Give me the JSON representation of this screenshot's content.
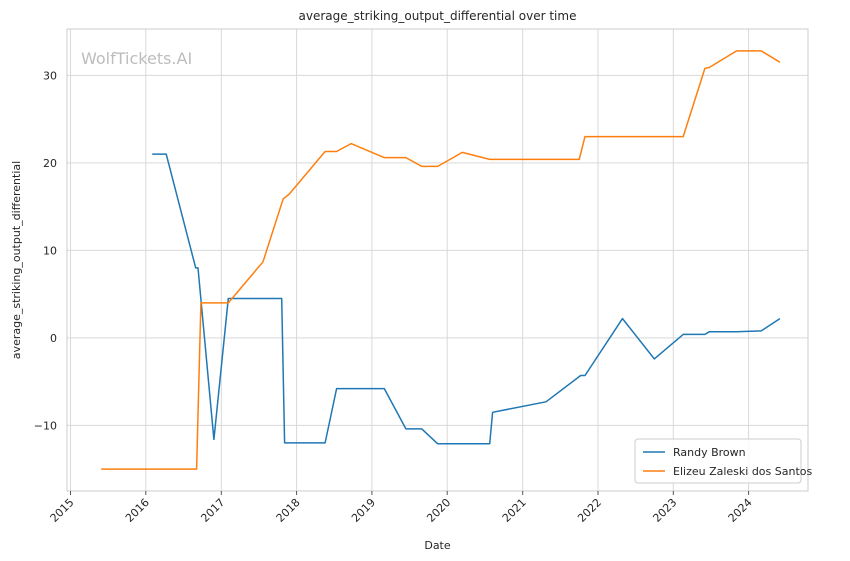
{
  "chart_data": {
    "type": "line",
    "title": "average_striking_output_differential over time",
    "xlabel": "Date",
    "ylabel": "average_striking_output_differential",
    "watermark": "WolfTickets.AI",
    "x_ticks": [
      "2015",
      "2016",
      "2017",
      "2018",
      "2019",
      "2020",
      "2021",
      "2022",
      "2023",
      "2024"
    ],
    "y_ticks": [
      -10,
      0,
      10,
      20,
      30
    ],
    "xlim": [
      "2014-12-15",
      "2024-10-15"
    ],
    "ylim": [
      -17.5,
      35.3
    ],
    "grid": true,
    "legend_position": "lower-right",
    "series": [
      {
        "name": "Randy Brown",
        "color": "#1f77b4",
        "points": [
          [
            "2016-02-01",
            21.0
          ],
          [
            "2016-04-09",
            21.0
          ],
          [
            "2016-08-30",
            8.0
          ],
          [
            "2016-09-10",
            8.0
          ],
          [
            "2016-11-26",
            -11.6
          ],
          [
            "2017-02-04",
            4.5
          ],
          [
            "2017-10-21",
            4.5
          ],
          [
            "2017-11-04",
            -12.0
          ],
          [
            "2018-05-19",
            -12.0
          ],
          [
            "2018-07-14",
            -5.8
          ],
          [
            "2019-03-02",
            -5.8
          ],
          [
            "2019-06-15",
            -10.4
          ],
          [
            "2019-08-31",
            -10.4
          ],
          [
            "2019-11-16",
            -12.1
          ],
          [
            "2020-07-25",
            -12.1
          ],
          [
            "2020-08-08",
            -8.5
          ],
          [
            "2021-04-24",
            -7.3
          ],
          [
            "2021-10-09",
            -4.3
          ],
          [
            "2021-10-30",
            -4.3
          ],
          [
            "2022-04-30",
            2.2
          ],
          [
            "2022-10-01",
            -2.4
          ],
          [
            "2023-02-18",
            0.4
          ],
          [
            "2023-06-03",
            0.4
          ],
          [
            "2023-06-24",
            0.7
          ],
          [
            "2023-11-04",
            0.7
          ],
          [
            "2024-03-02",
            0.8
          ],
          [
            "2024-06-01",
            2.2
          ]
        ]
      },
      {
        "name": "Elizeu Zaleski dos Santos",
        "color": "#ff7f0e",
        "points": [
          [
            "2015-05-30",
            -15.0
          ],
          [
            "2016-09-03",
            -15.0
          ],
          [
            "2016-09-24",
            4.0
          ],
          [
            "2017-02-04",
            4.0
          ],
          [
            "2017-07-22",
            8.7
          ],
          [
            "2017-10-28",
            15.9
          ],
          [
            "2017-11-25",
            16.4
          ],
          [
            "2018-05-19",
            21.3
          ],
          [
            "2018-07-14",
            21.3
          ],
          [
            "2018-09-22",
            22.2
          ],
          [
            "2019-03-02",
            20.6
          ],
          [
            "2019-06-15",
            20.6
          ],
          [
            "2019-08-31",
            19.6
          ],
          [
            "2019-11-16",
            19.6
          ],
          [
            "2020-03-14",
            21.2
          ],
          [
            "2020-07-25",
            20.4
          ],
          [
            "2021-10-02",
            20.4
          ],
          [
            "2021-10-30",
            23.0
          ],
          [
            "2023-02-18",
            23.0
          ],
          [
            "2023-06-03",
            30.8
          ],
          [
            "2023-06-24",
            30.9
          ],
          [
            "2023-11-04",
            32.8
          ],
          [
            "2024-03-02",
            32.8
          ],
          [
            "2024-06-01",
            31.5
          ]
        ]
      }
    ]
  }
}
